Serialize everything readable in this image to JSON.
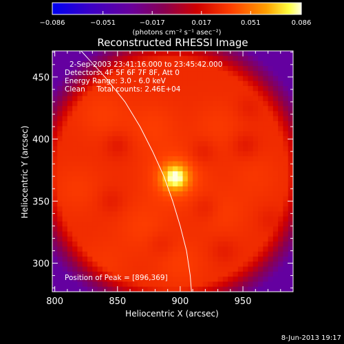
{
  "chart_data": {
    "type": "heatmap",
    "title": "Reconstructed RHESSI Image",
    "xlabel": "Heliocentric X (arcsec)",
    "ylabel": "Heliocentric Y (arcsec)",
    "xlim": [
      798,
      990
    ],
    "ylim": [
      277,
      471
    ],
    "x_ticks": [
      800,
      850,
      900,
      950
    ],
    "y_ticks": [
      300,
      350,
      400,
      450
    ],
    "colorbar": {
      "range": [
        -0.086,
        0.086
      ],
      "tick_labels": [
        "−0.086",
        "−0.051",
        "−0.017",
        "0.017",
        "0.051",
        "0.086"
      ],
      "tick_values": [
        -0.086,
        -0.051,
        -0.017,
        0.017,
        0.051,
        0.086
      ],
      "unit_label": "(photons cm⁻² s⁻¹ asec⁻²)"
    },
    "annotations": [
      "2-Sep-2003 23:41:16.000 to 23:45:42.000",
      "Detectors: 4F 5F 6F 7F 8F, Att 0",
      "Energy Range: 3.0 - 6.0 keV",
      "Clean     Total counts: 2.46E+04"
    ],
    "peak_label": "Position of Peak = [896,369]",
    "peak": {
      "x": 896,
      "y": 369,
      "value": 0.086
    },
    "limb": [
      [
        821,
        471
      ],
      [
        840,
        450
      ],
      [
        856,
        430
      ],
      [
        868,
        410
      ],
      [
        878,
        390
      ],
      [
        887,
        370
      ],
      [
        894,
        350
      ],
      [
        900,
        330
      ],
      [
        905,
        310
      ],
      [
        908,
        290
      ],
      [
        909,
        277
      ]
    ],
    "background_level": 0.03,
    "sources": [
      {
        "x": 896,
        "y": 369,
        "sigma": 7,
        "amp": 0.05
      },
      {
        "x": 896,
        "y": 369,
        "sigma": 16,
        "amp": 0.012
      },
      {
        "x": 838,
        "y": 420,
        "sigma": 14,
        "amp": 0.006
      },
      {
        "x": 878,
        "y": 410,
        "sigma": 14,
        "amp": 0.006
      },
      {
        "x": 930,
        "y": 410,
        "sigma": 14,
        "amp": 0.005
      },
      {
        "x": 818,
        "y": 360,
        "sigma": 14,
        "amp": 0.005
      },
      {
        "x": 870,
        "y": 330,
        "sigma": 14,
        "amp": 0.006
      },
      {
        "x": 935,
        "y": 340,
        "sigma": 14,
        "amp": 0.005
      },
      {
        "x": 900,
        "y": 300,
        "sigma": 14,
        "amp": 0.006
      },
      {
        "x": 960,
        "y": 370,
        "sigma": 14,
        "amp": 0.004
      },
      {
        "x": 840,
        "y": 300,
        "sigma": 14,
        "amp": 0.004
      },
      {
        "x": 850,
        "y": 395,
        "sigma": 7,
        "amp": -0.008
      },
      {
        "x": 918,
        "y": 390,
        "sigma": 7,
        "amp": -0.007
      },
      {
        "x": 952,
        "y": 395,
        "sigma": 7,
        "amp": -0.008
      },
      {
        "x": 920,
        "y": 345,
        "sigma": 7,
        "amp": -0.006
      },
      {
        "x": 845,
        "y": 350,
        "sigma": 7,
        "amp": -0.006
      },
      {
        "x": 885,
        "y": 315,
        "sigma": 7,
        "amp": -0.005
      },
      {
        "x": 935,
        "y": 310,
        "sigma": 7,
        "amp": -0.006
      },
      {
        "x": 972,
        "y": 335,
        "sigma": 7,
        "amp": -0.005
      },
      {
        "x": 955,
        "y": 425,
        "sigma": 7,
        "amp": -0.005
      }
    ],
    "disk": {
      "cx": 893,
      "cy": 372,
      "r": 92,
      "outside_value": -0.035
    },
    "grid": false
  },
  "footer_date": "8-Jun-2013 19:17"
}
